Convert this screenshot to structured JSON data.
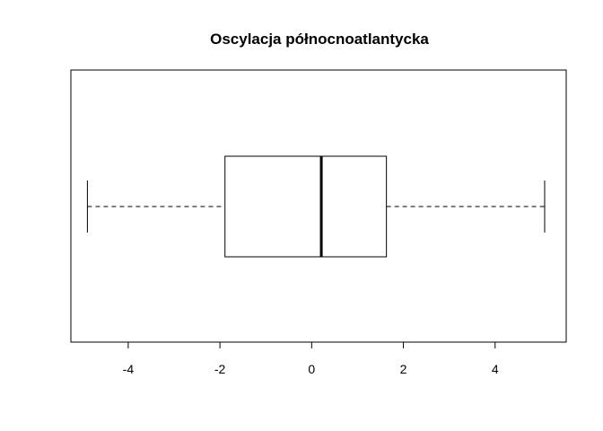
{
  "chart_data": {
    "type": "boxplot",
    "orientation": "horizontal",
    "title": "Oscylacja północnoatlantycka",
    "xlabel": "",
    "ylabel": "",
    "xlim": [
      -5.25,
      5.55
    ],
    "ticks": [
      -4,
      -2,
      0,
      2,
      4
    ],
    "tick_labels": [
      "-4",
      "-2",
      "0",
      "2",
      "4"
    ],
    "box": {
      "whisker_low": -4.89,
      "q1": -1.89,
      "median": 0.21,
      "q3": 1.63,
      "whisker_high": 5.08
    },
    "grid": false,
    "legend": "none"
  }
}
